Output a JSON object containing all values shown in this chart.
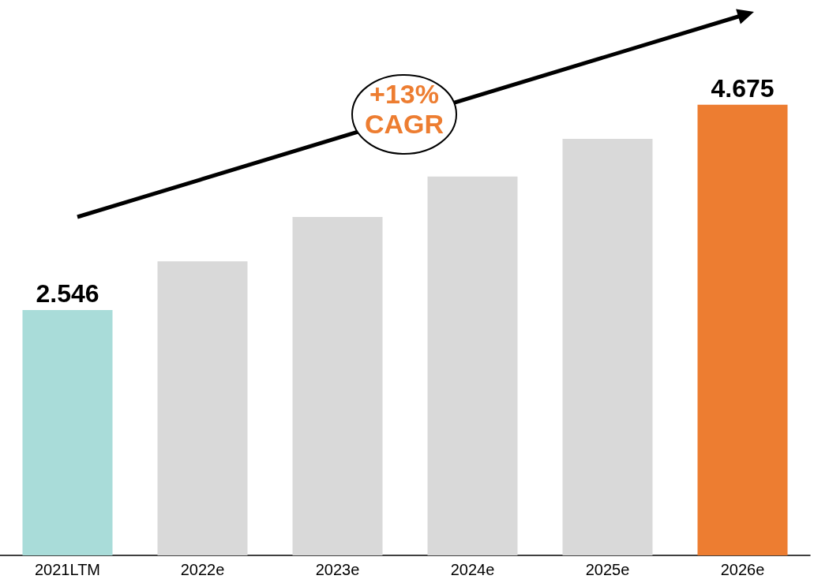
{
  "chart_data": {
    "type": "bar",
    "categories": [
      "2021LTM",
      "2022e",
      "2023e",
      "2024e",
      "2025e",
      "2026e"
    ],
    "values": [
      2.546,
      3.05,
      3.51,
      3.93,
      4.32,
      4.675
    ],
    "value_labels": [
      "2.546",
      null,
      null,
      null,
      null,
      "4.675"
    ],
    "colors": [
      "#a9dcd9",
      "#d9d9d9",
      "#d9d9d9",
      "#d9d9d9",
      "#d9d9d9",
      "#ed7d31"
    ],
    "annotations": [
      "+13% CAGR"
    ]
  }
}
